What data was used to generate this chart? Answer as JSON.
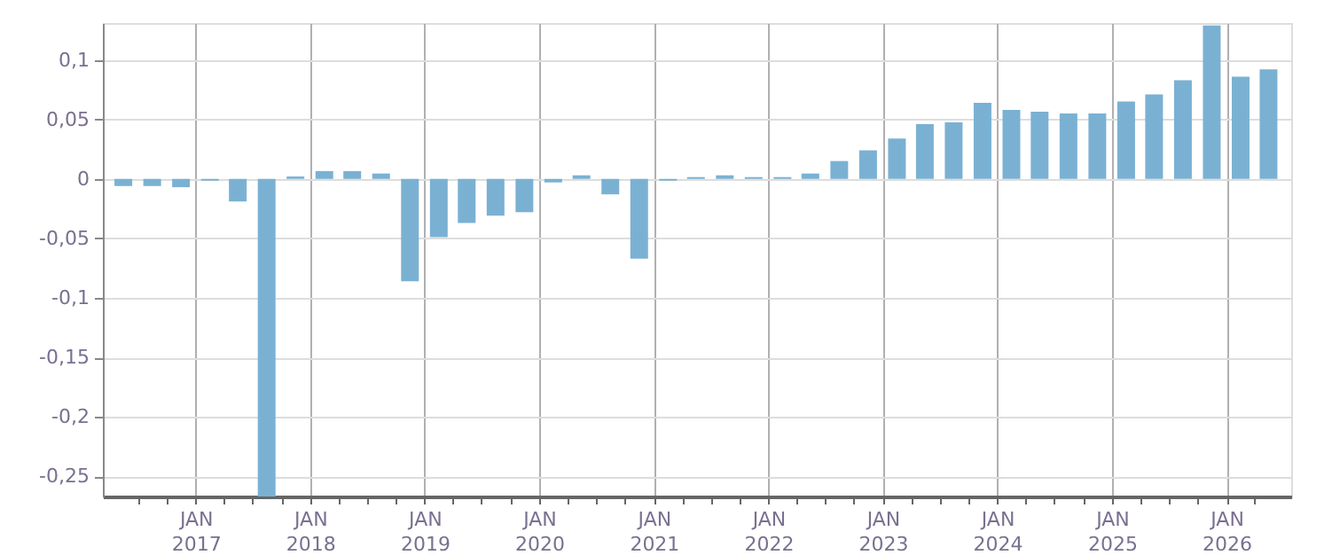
{
  "chart_data": {
    "type": "bar",
    "x": [
      "2016-05-15",
      "2016-08-15",
      "2016-11-15",
      "2017-02-15",
      "2017-05-15",
      "2017-08-15",
      "2017-11-15",
      "2018-02-15",
      "2018-05-15",
      "2018-08-15",
      "2018-11-15",
      "2019-02-15",
      "2019-05-15",
      "2019-08-15",
      "2019-11-15",
      "2020-02-15",
      "2020-05-15",
      "2020-08-15",
      "2020-11-15",
      "2021-02-15",
      "2021-05-15",
      "2021-08-15",
      "2021-11-15",
      "2022-02-15",
      "2022-05-15",
      "2022-08-15",
      "2022-11-15",
      "2023-02-15",
      "2023-05-15",
      "2023-08-15",
      "2023-11-15",
      "2024-02-15",
      "2024-05-15",
      "2024-08-15",
      "2024-11-15",
      "2025-02-15",
      "2025-05-15",
      "2025-08-15",
      "2025-11-15",
      "2026-02-15",
      "2026-05-15"
    ],
    "values": [
      -0.006,
      -0.006,
      -0.007,
      -0.0015,
      -0.019,
      -0.267,
      0.002,
      0.0065,
      0.0065,
      0.0045,
      -0.086,
      -0.049,
      -0.037,
      -0.031,
      -0.028,
      -0.003,
      0.003,
      -0.013,
      -0.067,
      -0.0015,
      0.0015,
      0.003,
      0.0015,
      0.0015,
      0.0045,
      0.015,
      0.024,
      0.034,
      0.046,
      0.0475,
      0.064,
      0.058,
      0.0565,
      0.055,
      0.055,
      0.065,
      0.071,
      0.083,
      0.129,
      0.086,
      0.092
    ],
    "color": "#7ab1d3",
    "ylim": [
      -0.267,
      0.131
    ],
    "yticks": [
      {
        "value": -0.25,
        "label": "-0,25"
      },
      {
        "value": -0.2,
        "label": "-0,2"
      },
      {
        "value": -0.15,
        "label": "-0,15"
      },
      {
        "value": -0.1,
        "label": "-0,1"
      },
      {
        "value": -0.05,
        "label": "-0,05"
      },
      0,
      {
        "value": 0.05,
        "label": "0,05"
      },
      {
        "value": 0.1,
        "label": "0,1"
      }
    ],
    "xlim": [
      "2016-04-08",
      "2026-06-28"
    ],
    "xticks": [
      {
        "value": "2016-07-01",
        "label": null
      },
      {
        "value": "2016-10-01",
        "label": null
      },
      {
        "value": "2017-01-01",
        "label": "JAN\n2017"
      },
      {
        "value": "2017-04-01",
        "label": null
      },
      {
        "value": "2017-07-01",
        "label": null
      },
      {
        "value": "2017-10-01",
        "label": null
      },
      {
        "value": "2018-01-01",
        "label": "JAN\n2018"
      },
      {
        "value": "2018-04-01",
        "label": null
      },
      {
        "value": "2018-07-01",
        "label": null
      },
      {
        "value": "2018-10-01",
        "label": null
      },
      {
        "value": "2019-01-01",
        "label": "JAN\n2019"
      },
      {
        "value": "2019-04-01",
        "label": null
      },
      {
        "value": "2019-07-01",
        "label": null
      },
      {
        "value": "2019-10-01",
        "label": null
      },
      {
        "value": "2020-01-01",
        "label": "JAN\n2020"
      },
      {
        "value": "2020-04-01",
        "label": null
      },
      {
        "value": "2020-07-01",
        "label": null
      },
      {
        "value": "2020-10-01",
        "label": null
      },
      {
        "value": "2021-01-01",
        "label": "JAN\n2021"
      },
      {
        "value": "2021-04-01",
        "label": null
      },
      {
        "value": "2021-07-01",
        "label": null
      },
      {
        "value": "2021-10-01",
        "label": null
      },
      {
        "value": "2022-01-01",
        "label": "JAN\n2022"
      },
      {
        "value": "2022-04-01",
        "label": null
      },
      {
        "value": "2022-07-01",
        "label": null
      },
      {
        "value": "2022-10-01",
        "label": null
      },
      {
        "value": "2023-01-01",
        "label": "JAN\n2023"
      },
      {
        "value": "2023-04-01",
        "label": null
      },
      {
        "value": "2023-07-01",
        "label": null
      },
      {
        "value": "2023-10-01",
        "label": null
      },
      {
        "value": "2024-01-01",
        "label": "JAN\n2024"
      },
      {
        "value": "2024-04-01",
        "label": null
      },
      {
        "value": "2024-07-01",
        "label": null
      },
      {
        "value": "2024-10-01",
        "label": null
      },
      {
        "value": "2025-01-01",
        "label": "JAN\n2025"
      },
      {
        "value": "2025-04-01",
        "label": null
      },
      {
        "value": "2025-07-01",
        "label": null
      },
      {
        "value": "2025-10-01",
        "label": null
      },
      {
        "value": "2026-01-01",
        "label": "JAN\n2026"
      },
      {
        "value": "2026-04-01",
        "label": null
      }
    ],
    "grid": true
  }
}
